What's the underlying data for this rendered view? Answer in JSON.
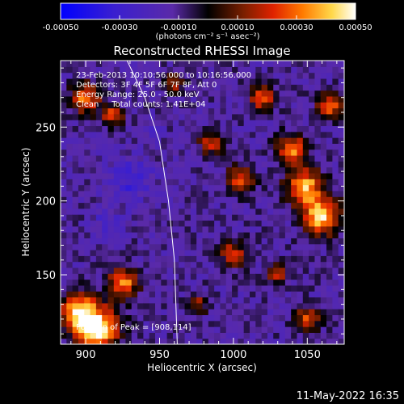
{
  "chart_data": {
    "type": "heatmap",
    "title": "Reconstructed RHESSI Image",
    "xlabel": "Heliocentric X (arcsec)",
    "ylabel": "Heliocentric Y (arcsec)",
    "xlim": [
      883,
      1075
    ],
    "ylim": [
      103,
      295
    ],
    "x_ticks": [
      900,
      950,
      1000,
      1050
    ],
    "y_ticks": [
      150,
      200,
      250
    ],
    "colorbar": {
      "range": [
        -0.0005,
        0.0005
      ],
      "tick_labels": [
        "-0.00050",
        "-0.00030",
        "-0.00010",
        "0.00010",
        "0.00030",
        "0.00050"
      ],
      "units_label": "(photons cm⁻² s⁻¹ asec⁻²)",
      "colors": [
        "#0000ff",
        "#3a1fd0",
        "#5a2aa8",
        "#000000",
        "#7a1f00",
        "#e02200",
        "#ff7a00",
        "#ffd84a",
        "#ffffff"
      ]
    },
    "annotations": [
      "23-Feb-2013 10:10:56.000 to 10:16:56.000",
      "Detectors: 3F 4F 5F 6F 7F 8F, Att 0",
      "Energy Range: 25.0 - 50.0 keV",
      "Clean     Total counts: 1.41E+04"
    ],
    "peak_label": "Position of Peak = [908,114]",
    "peak": [
      908,
      114
    ],
    "limb_curve": [
      [
        928,
        295
      ],
      [
        940,
        270
      ],
      [
        950,
        240
      ],
      [
        956,
        200
      ],
      [
        960,
        160
      ],
      [
        962,
        103
      ]
    ],
    "hot_regions": [
      {
        "x": 908,
        "y": 114,
        "r": 14,
        "v": 0.0005
      },
      {
        "x": 895,
        "y": 125,
        "r": 12,
        "v": 0.0004
      },
      {
        "x": 925,
        "y": 145,
        "r": 10,
        "v": 0.00035
      },
      {
        "x": 900,
        "y": 270,
        "r": 10,
        "v": 0.0003
      },
      {
        "x": 918,
        "y": 258,
        "r": 7,
        "v": 0.00025
      },
      {
        "x": 1048,
        "y": 210,
        "r": 12,
        "v": 0.0004
      },
      {
        "x": 1060,
        "y": 190,
        "r": 12,
        "v": 0.00045
      },
      {
        "x": 1040,
        "y": 235,
        "r": 10,
        "v": 0.0003
      },
      {
        "x": 1005,
        "y": 215,
        "r": 9,
        "v": 0.00025
      },
      {
        "x": 985,
        "y": 240,
        "r": 8,
        "v": 0.0002
      },
      {
        "x": 1020,
        "y": 270,
        "r": 9,
        "v": 0.00025
      },
      {
        "x": 1065,
        "y": 265,
        "r": 8,
        "v": 0.0003
      },
      {
        "x": 1000,
        "y": 165,
        "r": 9,
        "v": 0.0002
      },
      {
        "x": 1030,
        "y": 150,
        "r": 7,
        "v": 0.00018
      },
      {
        "x": 975,
        "y": 130,
        "r": 7,
        "v": 0.00015
      },
      {
        "x": 1050,
        "y": 120,
        "r": 8,
        "v": 0.00025
      },
      {
        "x": 960,
        "y": 280,
        "r": 7,
        "v": 0.00015
      }
    ],
    "cold_regions": [
      {
        "x": 930,
        "y": 215,
        "r": 14,
        "v": -0.0003
      },
      {
        "x": 915,
        "y": 185,
        "r": 10,
        "v": -0.00025
      },
      {
        "x": 945,
        "y": 250,
        "r": 8,
        "v": -0.0002
      },
      {
        "x": 960,
        "y": 160,
        "r": 8,
        "v": -0.00015
      },
      {
        "x": 1040,
        "y": 165,
        "r": 7,
        "v": -0.0001
      }
    ],
    "grid": false
  },
  "footer": {
    "timestamp": "11-May-2022 16:35"
  }
}
